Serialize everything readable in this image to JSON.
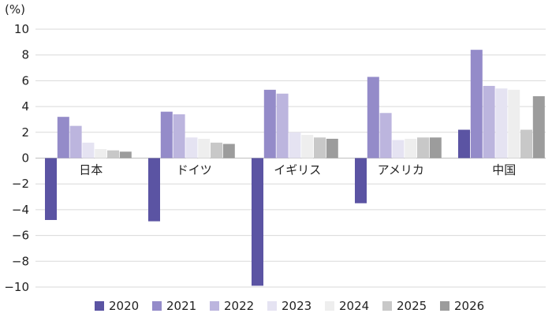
{
  "chart_data": {
    "type": "bar",
    "unit_label": "(%)",
    "categories": [
      "日本",
      "ドイツ",
      "イギリス",
      "アメリカ",
      "中国"
    ],
    "ylim": [
      -10,
      10
    ],
    "yticks": [
      "10",
      "8",
      "6",
      "4",
      "2",
      "0",
      "−2",
      "−4",
      "−6",
      "−8",
      "−10"
    ],
    "ytick_values": [
      10,
      8,
      6,
      4,
      2,
      0,
      -2,
      -4,
      -6,
      -8,
      -10
    ],
    "grid": true,
    "legend_position": "bottom",
    "series": [
      {
        "name": "2020",
        "color": "#5b54a3",
        "values": [
          -4.8,
          -4.9,
          -9.9,
          -3.5,
          2.2
        ]
      },
      {
        "name": "2021",
        "color": "#948bc9",
        "values": [
          3.2,
          3.6,
          5.3,
          6.3,
          8.4
        ]
      },
      {
        "name": "2022",
        "color": "#bcb5de",
        "values": [
          2.5,
          3.4,
          5.0,
          3.5,
          5.6
        ]
      },
      {
        "name": "2023",
        "color": "#e5e3f2",
        "values": [
          1.2,
          1.6,
          2.0,
          1.4,
          5.4
        ]
      },
      {
        "name": "2024",
        "color": "#eeeeee",
        "values": [
          0.7,
          1.5,
          1.8,
          1.5,
          5.3
        ]
      },
      {
        "name": "2025",
        "color": "#c8c8c8",
        "values": [
          0.6,
          1.2,
          1.6,
          1.6,
          2.2
        ]
      },
      {
        "name": "2026",
        "color": "#9c9c9c",
        "values": [
          0.5,
          1.1,
          1.5,
          1.6,
          4.8
        ]
      }
    ]
  }
}
